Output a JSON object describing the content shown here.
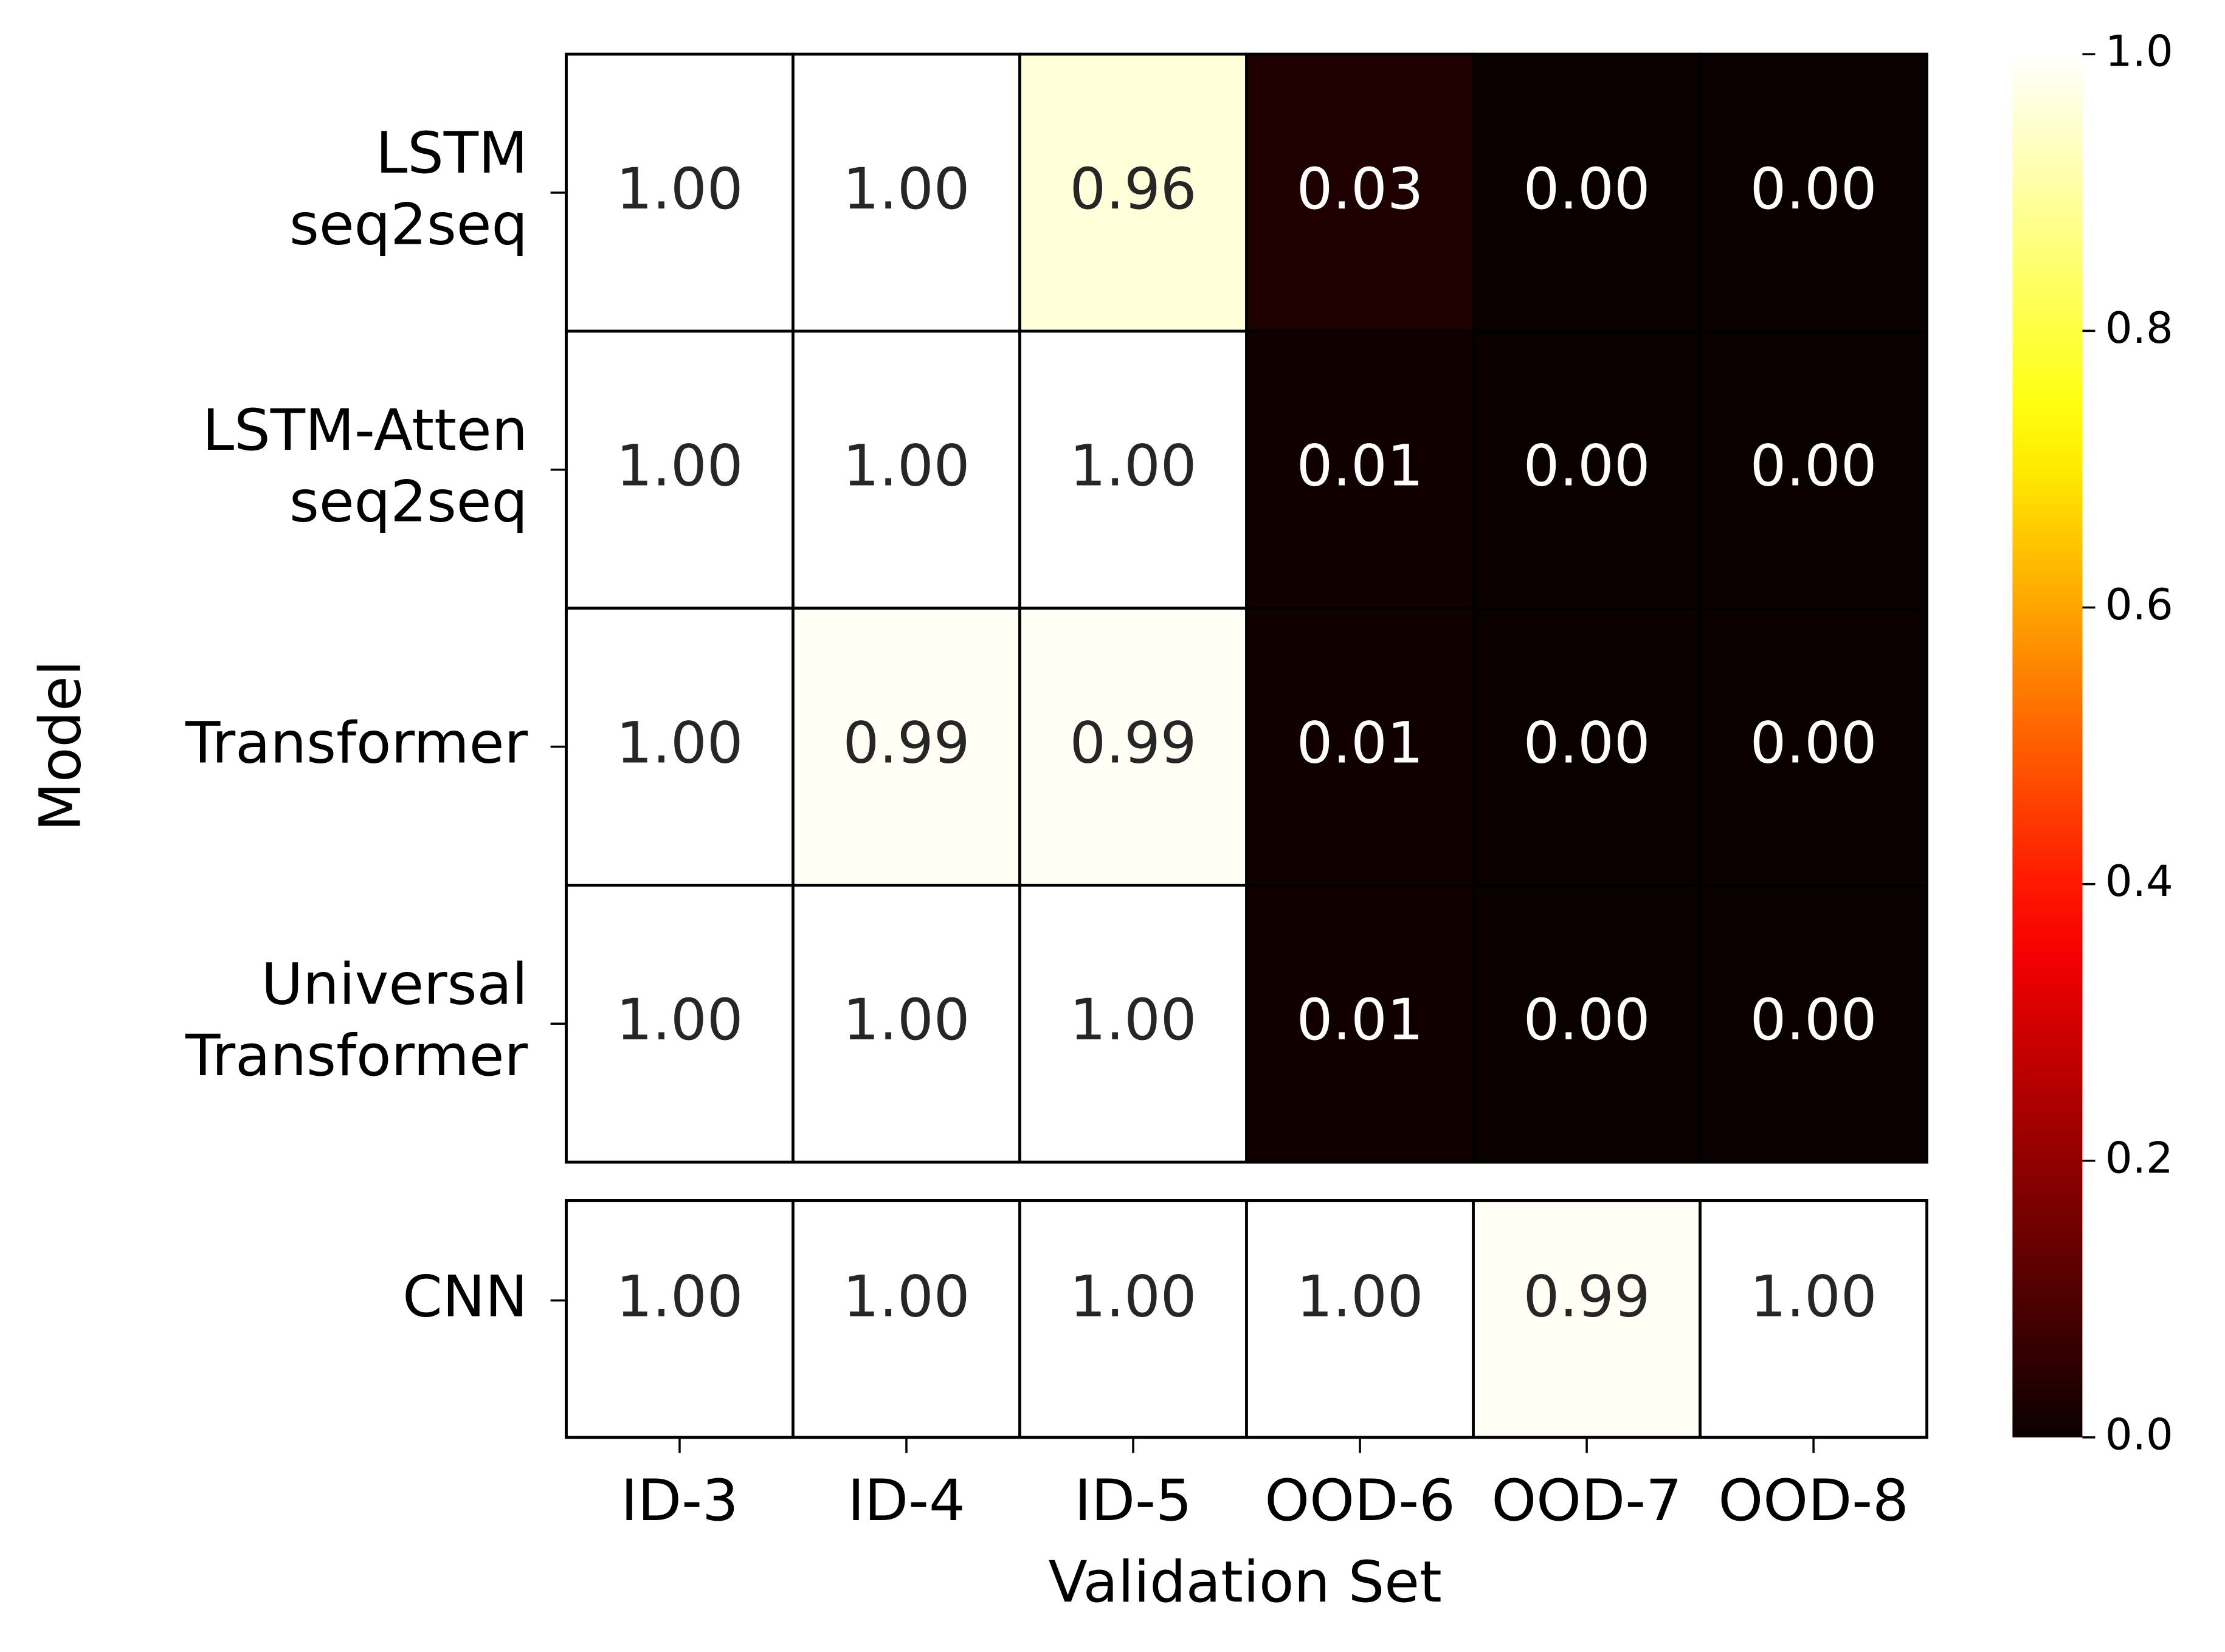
{
  "chart_data": {
    "type": "heatmap",
    "xlabel": "Validation Set",
    "ylabel": "Model",
    "x_categories": [
      "ID-3",
      "ID-4",
      "ID-5",
      "OOD-6",
      "OOD-7",
      "OOD-8"
    ],
    "y_categories": [
      [
        "LSTM",
        "seq2seq"
      ],
      [
        "LSTM-Atten",
        "seq2seq"
      ],
      [
        "Transformer"
      ],
      [
        "Universal",
        "Transformer"
      ],
      [
        "CNN"
      ]
    ],
    "values": [
      [
        1,
        1,
        0.96,
        0.03,
        0,
        0
      ],
      [
        1,
        1,
        1,
        0.01,
        0,
        0
      ],
      [
        1,
        0.99,
        0.99,
        0.01,
        0,
        0
      ],
      [
        1,
        1,
        1,
        0.01,
        0,
        0
      ],
      [
        1,
        1,
        1,
        1,
        0.99,
        1
      ]
    ],
    "value_labels": [
      [
        "1.00",
        "1.00",
        "0.96",
        "0.03",
        "0.00",
        "0.00"
      ],
      [
        "1.00",
        "1.00",
        "1.00",
        "0.01",
        "0.00",
        "0.00"
      ],
      [
        "1.00",
        "0.99",
        "0.99",
        "0.01",
        "0.00",
        "0.00"
      ],
      [
        "1.00",
        "1.00",
        "1.00",
        "0.01",
        "0.00",
        "0.00"
      ],
      [
        "1.00",
        "1.00",
        "1.00",
        "1.00",
        "0.99",
        "1.00"
      ]
    ],
    "colormap": "hot",
    "clim": [
      0,
      1
    ],
    "cticks": [
      {
        "value": 0,
        "label": "0.0"
      },
      0.2,
      0.4,
      0.6,
      0.8,
      {
        "value": 1,
        "label": "1.0"
      }
    ]
  }
}
